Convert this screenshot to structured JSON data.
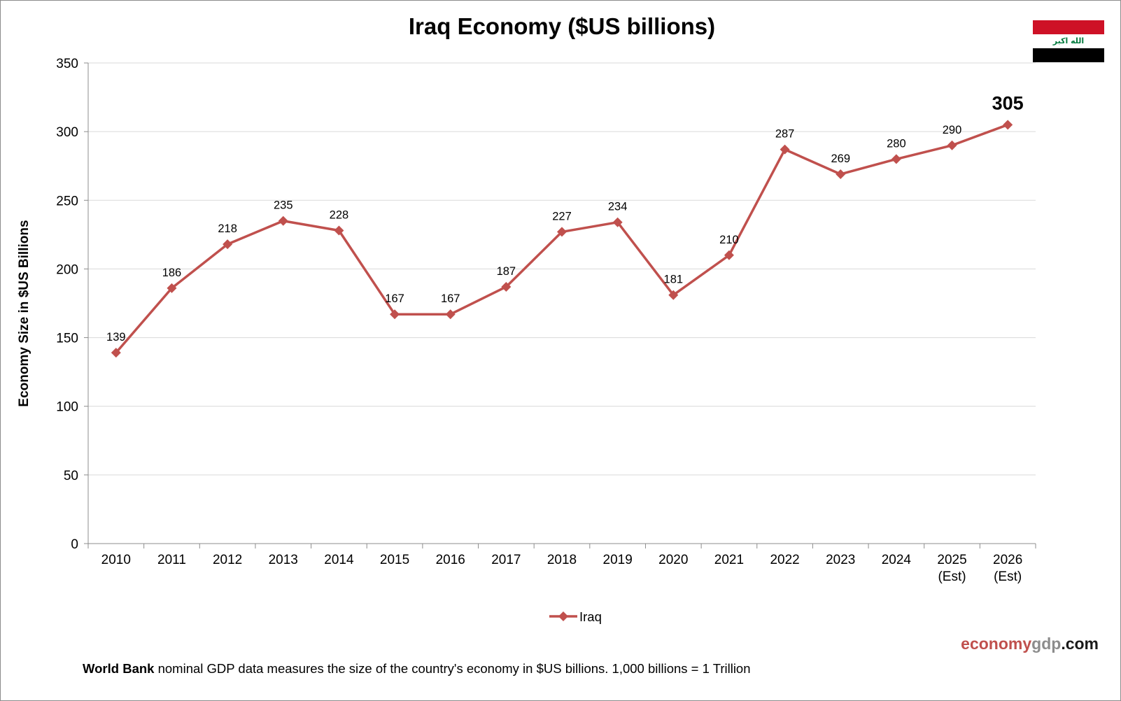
{
  "chart_data": {
    "type": "line",
    "title": "Iraq Economy ($US billions)",
    "ylabel": "Economy Size in $US Billions",
    "xlabel": "",
    "ylim": [
      0,
      350
    ],
    "yticks": [
      0,
      50,
      100,
      150,
      200,
      250,
      300,
      350
    ],
    "grid": "horizontal",
    "legend": "bottom-center",
    "categories": [
      "2010",
      "2011",
      "2012",
      "2013",
      "2014",
      "2015",
      "2016",
      "2017",
      "2018",
      "2019",
      "2020",
      "2021",
      "2022",
      "2023",
      "2024",
      "2025\n(Est)",
      "2026\n(Est)"
    ],
    "series": [
      {
        "name": "Iraq",
        "color": "#c0504d",
        "marker": "diamond",
        "values": [
          139,
          186,
          218,
          235,
          228,
          167,
          167,
          187,
          227,
          234,
          181,
          210,
          287,
          269,
          280,
          290,
          305
        ]
      }
    ],
    "data_labels": [
      "139",
      "186",
      "218",
      "235",
      "228",
      "167",
      "167",
      "187",
      "227",
      "234",
      "181",
      "210",
      "287",
      "269",
      "280",
      "290",
      "305"
    ],
    "highlight_last_label": true
  },
  "footnote": {
    "source": "World Bank",
    "text": " nominal GDP data  measures the size of the country's economy in $US billions.  1,000 billions = 1 Trillion"
  },
  "brand": {
    "part1": "economy",
    "part2": "gdp",
    "part3": ".com"
  },
  "flag": {
    "icon": "iraq-flag-icon",
    "emblem_text": "الله اكبر",
    "colors": [
      "#ce1126",
      "#ffffff",
      "#000000"
    ]
  }
}
